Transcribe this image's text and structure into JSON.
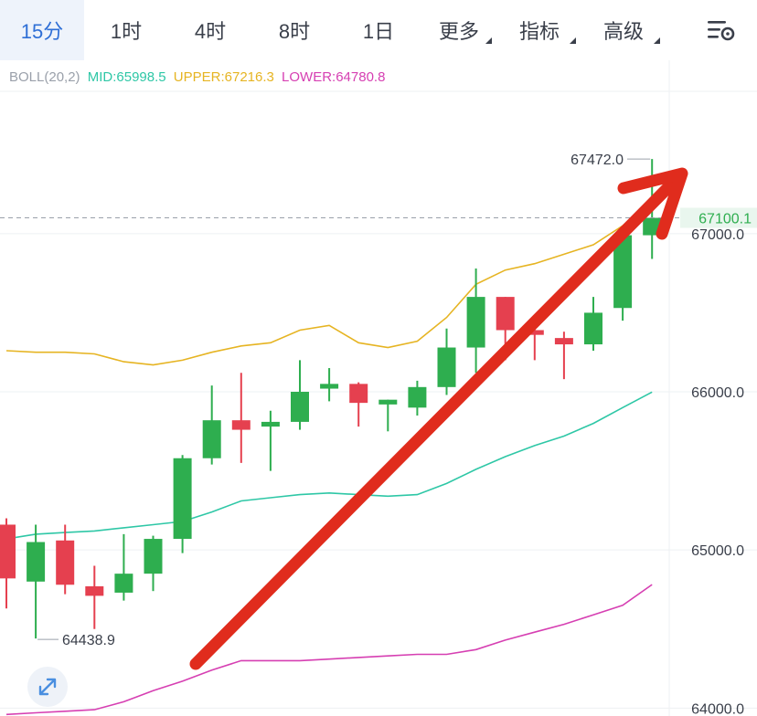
{
  "toolbar": {
    "tabs": [
      {
        "label": "15分",
        "active": true
      },
      {
        "label": "1时"
      },
      {
        "label": "4时"
      },
      {
        "label": "8时"
      },
      {
        "label": "1日"
      },
      {
        "label": "更多",
        "dropdown": true
      },
      {
        "label": "指标",
        "dropdown": true
      },
      {
        "label": "高级",
        "dropdown": true
      }
    ],
    "settings_icon": "chart-settings-icon"
  },
  "indicator": {
    "name": "BOLL(20,2)",
    "mid": "MID:65998.5",
    "upper": "UPPER:67216.3",
    "lower": "LOWER:64780.8",
    "colors": {
      "name": "#9aa0aa",
      "mid": "#2ec7a6",
      "upper": "#e6b422",
      "lower": "#d63fb2"
    }
  },
  "chart_data": {
    "type": "candlestick",
    "interval": "15分",
    "y_ticks": [
      "67000.0",
      "66000.0",
      "65000.0",
      "64000.0"
    ],
    "ylim": [
      63950,
      67900
    ],
    "current_price": "67100.1",
    "high_label": "67472.0",
    "low_label": "64438.9",
    "candles": [
      {
        "o": 65160,
        "h": 65200,
        "l": 64630,
        "c": 64820
      },
      {
        "o": 64800,
        "h": 65160,
        "l": 64440,
        "c": 65050
      },
      {
        "o": 65060,
        "h": 65160,
        "l": 64720,
        "c": 64780
      },
      {
        "o": 64770,
        "h": 64900,
        "l": 64500,
        "c": 64710
      },
      {
        "o": 64730,
        "h": 65100,
        "l": 64680,
        "c": 64850
      },
      {
        "o": 64850,
        "h": 65090,
        "l": 64740,
        "c": 65070
      },
      {
        "o": 65070,
        "h": 65600,
        "l": 64980,
        "c": 65580
      },
      {
        "o": 65580,
        "h": 66040,
        "l": 65540,
        "c": 65820
      },
      {
        "o": 65820,
        "h": 66120,
        "l": 65550,
        "c": 65760
      },
      {
        "o": 65780,
        "h": 65880,
        "l": 65500,
        "c": 65810
      },
      {
        "o": 65810,
        "h": 66200,
        "l": 65760,
        "c": 66000
      },
      {
        "o": 66020,
        "h": 66150,
        "l": 65940,
        "c": 66050
      },
      {
        "o": 66050,
        "h": 66060,
        "l": 65780,
        "c": 65930
      },
      {
        "o": 65920,
        "h": 65950,
        "l": 65750,
        "c": 65950
      },
      {
        "o": 65900,
        "h": 66070,
        "l": 65850,
        "c": 66030
      },
      {
        "o": 66030,
        "h": 66400,
        "l": 65980,
        "c": 66280
      },
      {
        "o": 66280,
        "h": 66780,
        "l": 66120,
        "c": 66600
      },
      {
        "o": 66600,
        "h": 66600,
        "l": 66200,
        "c": 66390
      },
      {
        "o": 66390,
        "h": 66450,
        "l": 66200,
        "c": 66360
      },
      {
        "o": 66340,
        "h": 66380,
        "l": 66080,
        "c": 66300
      },
      {
        "o": 66300,
        "h": 66600,
        "l": 66260,
        "c": 66500
      },
      {
        "o": 66530,
        "h": 67030,
        "l": 66450,
        "c": 66990
      },
      {
        "o": 66990,
        "h": 67472,
        "l": 66840,
        "c": 67100.1
      }
    ],
    "boll_upper": [
      66260,
      66250,
      66250,
      66240,
      66190,
      66170,
      66200,
      66250,
      66290,
      66310,
      66390,
      66420,
      66310,
      66280,
      66320,
      66470,
      66680,
      66770,
      66810,
      66870,
      66930,
      67050,
      67216.3
    ],
    "boll_mid": [
      65070,
      65100,
      65110,
      65120,
      65140,
      65160,
      65180,
      65240,
      65310,
      65330,
      65350,
      65360,
      65350,
      65340,
      65350,
      65420,
      65510,
      65590,
      65660,
      65720,
      65800,
      65900,
      65998.5
    ],
    "boll_lower": [
      63960,
      63970,
      63980,
      63990,
      64040,
      64110,
      64170,
      64240,
      64300,
      64300,
      64300,
      64310,
      64320,
      64330,
      64340,
      64340,
      64370,
      64430,
      64480,
      64530,
      64590,
      64650,
      64780.8
    ],
    "colors": {
      "up": "#2eae4f",
      "down": "#e5404f",
      "arrow": "#e02c1d",
      "grid": "#eef0f3",
      "axis_text": "#3a3f4a"
    }
  }
}
